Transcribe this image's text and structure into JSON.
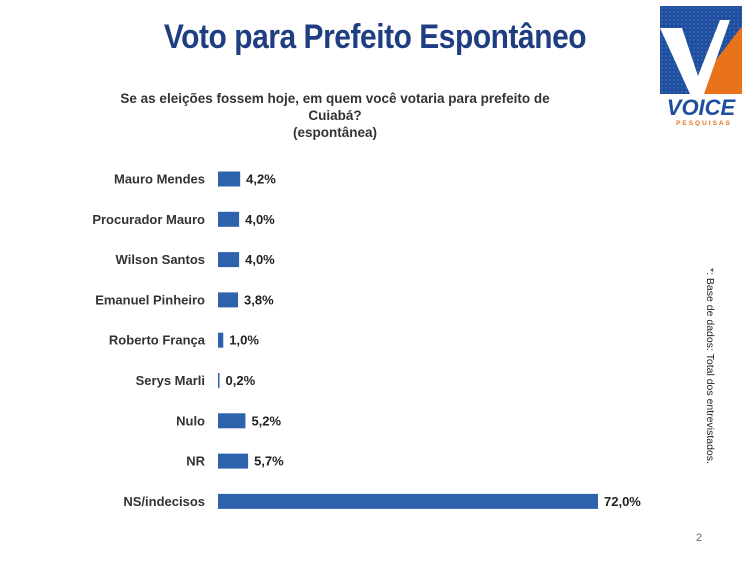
{
  "title": "Voto para Prefeito Espontâneo",
  "subtitle_line1": "Se as eleições fossem hoje, em quem você votaria para prefeito de Cuiabá?",
  "subtitle_line2": "(espontânea)",
  "logo": {
    "name": "VOICE",
    "tagline": "PESQUISAS",
    "colors": {
      "blue": "#1f4e9e",
      "orange": "#e8731a"
    }
  },
  "side_note": "*: Base de dados: Total dos  entrevistados.",
  "page_number": "2",
  "colors": {
    "bar": "#2e62ad",
    "title": "#1f3e82"
  },
  "chart_data": {
    "type": "bar",
    "orientation": "horizontal",
    "categories": [
      "Mauro Mendes",
      "Procurador Mauro",
      "Wilson Santos",
      "Emanuel Pinheiro",
      "Roberto França",
      "Serys Marli",
      "Nulo",
      "NR",
      "NS/indecisos"
    ],
    "values": [
      4.2,
      4.0,
      4.0,
      3.8,
      1.0,
      0.2,
      5.2,
      5.7,
      72.0
    ],
    "value_labels": [
      "4,2%",
      "4,0%",
      "4,0%",
      "3,8%",
      "1,0%",
      "0,2%",
      "5,2%",
      "5,7%",
      "72,0%"
    ],
    "xlim": [
      0,
      72
    ],
    "grid": false,
    "legend": "none"
  }
}
